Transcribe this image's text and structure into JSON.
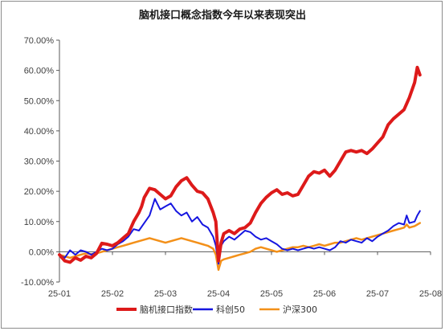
{
  "chart_data": {
    "type": "line",
    "title": "脑机接口概念指数今年以来表现突出",
    "xlabel": "",
    "ylabel": "",
    "ylim": [
      -10,
      70
    ],
    "yticks": [
      "-10.00%",
      "0.00%",
      "10.00%",
      "20.00%",
      "30.00%",
      "40.00%",
      "50.00%",
      "60.00%",
      "70.00%"
    ],
    "xticks": [
      "25-01",
      "25-02",
      "25-03",
      "25-04",
      "25-05",
      "25-06",
      "25-07",
      "25-08"
    ],
    "grid": false,
    "legend_position": "bottom",
    "series": [
      {
        "name": "脑机接口指数",
        "color": "#dd1a1a",
        "points": [
          [
            0.0,
            -1.0
          ],
          [
            0.1,
            -3.0
          ],
          [
            0.2,
            -3.5
          ],
          [
            0.3,
            -2.0
          ],
          [
            0.4,
            -2.8
          ],
          [
            0.5,
            -1.5
          ],
          [
            0.6,
            -2.0
          ],
          [
            0.7,
            -0.5
          ],
          [
            0.8,
            2.8
          ],
          [
            0.9,
            2.5
          ],
          [
            1.0,
            2.0
          ],
          [
            1.1,
            3.0
          ],
          [
            1.2,
            4.5
          ],
          [
            1.3,
            6.0
          ],
          [
            1.4,
            10.0
          ],
          [
            1.5,
            13.0
          ],
          [
            1.55,
            15.0
          ],
          [
            1.6,
            18.0
          ],
          [
            1.7,
            21.0
          ],
          [
            1.8,
            20.5
          ],
          [
            1.9,
            19.0
          ],
          [
            2.0,
            17.5
          ],
          [
            2.1,
            18.5
          ],
          [
            2.2,
            21.5
          ],
          [
            2.3,
            23.5
          ],
          [
            2.4,
            24.5
          ],
          [
            2.5,
            22.0
          ],
          [
            2.6,
            20.0
          ],
          [
            2.7,
            19.5
          ],
          [
            2.8,
            17.5
          ],
          [
            2.9,
            13.0
          ],
          [
            2.95,
            10.0
          ],
          [
            3.0,
            -3.0
          ],
          [
            3.05,
            3.0
          ],
          [
            3.1,
            6.0
          ],
          [
            3.2,
            7.0
          ],
          [
            3.3,
            6.0
          ],
          [
            3.4,
            7.5
          ],
          [
            3.5,
            8.0
          ],
          [
            3.6,
            9.5
          ],
          [
            3.7,
            13.0
          ],
          [
            3.8,
            16.0
          ],
          [
            3.9,
            18.0
          ],
          [
            4.0,
            19.5
          ],
          [
            4.1,
            20.5
          ],
          [
            4.2,
            19.0
          ],
          [
            4.3,
            19.5
          ],
          [
            4.4,
            18.5
          ],
          [
            4.5,
            19.0
          ],
          [
            4.6,
            22.0
          ],
          [
            4.7,
            25.0
          ],
          [
            4.8,
            26.5
          ],
          [
            4.9,
            26.0
          ],
          [
            5.0,
            27.0
          ],
          [
            5.1,
            25.0
          ],
          [
            5.2,
            27.0
          ],
          [
            5.3,
            30.0
          ],
          [
            5.4,
            33.0
          ],
          [
            5.5,
            33.5
          ],
          [
            5.6,
            33.0
          ],
          [
            5.7,
            33.5
          ],
          [
            5.8,
            32.5
          ],
          [
            5.9,
            34.0
          ],
          [
            6.0,
            36.0
          ],
          [
            6.1,
            38.0
          ],
          [
            6.2,
            42.0
          ],
          [
            6.3,
            44.0
          ],
          [
            6.4,
            45.5
          ],
          [
            6.5,
            47.0
          ],
          [
            6.6,
            51.0
          ],
          [
            6.7,
            56.0
          ],
          [
            6.75,
            61.0
          ],
          [
            6.8,
            58.5
          ]
        ]
      },
      {
        "name": "科创50",
        "color": "#1616e0",
        "points": [
          [
            0.0,
            -1.0
          ],
          [
            0.1,
            -2.0
          ],
          [
            0.2,
            0.5
          ],
          [
            0.3,
            -1.0
          ],
          [
            0.4,
            0.5
          ],
          [
            0.5,
            0.0
          ],
          [
            0.6,
            -1.0
          ],
          [
            0.7,
            0.0
          ],
          [
            0.8,
            1.0
          ],
          [
            0.9,
            0.5
          ],
          [
            1.0,
            1.0
          ],
          [
            1.1,
            2.5
          ],
          [
            1.2,
            3.5
          ],
          [
            1.3,
            5.0
          ],
          [
            1.4,
            7.5
          ],
          [
            1.5,
            7.0
          ],
          [
            1.6,
            9.5
          ],
          [
            1.7,
            12.0
          ],
          [
            1.8,
            17.5
          ],
          [
            1.9,
            14.0
          ],
          [
            2.0,
            15.0
          ],
          [
            2.1,
            16.0
          ],
          [
            2.2,
            13.5
          ],
          [
            2.3,
            12.0
          ],
          [
            2.4,
            13.0
          ],
          [
            2.5,
            10.0
          ],
          [
            2.6,
            11.5
          ],
          [
            2.7,
            9.0
          ],
          [
            2.8,
            8.0
          ],
          [
            2.9,
            5.0
          ],
          [
            2.95,
            2.0
          ],
          [
            3.0,
            -4.0
          ],
          [
            3.05,
            2.0
          ],
          [
            3.1,
            3.5
          ],
          [
            3.2,
            5.0
          ],
          [
            3.3,
            4.0
          ],
          [
            3.4,
            5.5
          ],
          [
            3.5,
            7.0
          ],
          [
            3.6,
            6.5
          ],
          [
            3.7,
            5.0
          ],
          [
            3.8,
            4.0
          ],
          [
            3.9,
            4.5
          ],
          [
            4.0,
            3.5
          ],
          [
            4.1,
            2.5
          ],
          [
            4.2,
            1.0
          ],
          [
            4.3,
            0.5
          ],
          [
            4.4,
            1.0
          ],
          [
            4.5,
            0.5
          ],
          [
            4.6,
            1.0
          ],
          [
            4.7,
            1.5
          ],
          [
            4.8,
            1.0
          ],
          [
            4.9,
            1.5
          ],
          [
            5.0,
            1.0
          ],
          [
            5.1,
            0.5
          ],
          [
            5.2,
            1.5
          ],
          [
            5.3,
            3.5
          ],
          [
            5.4,
            3.0
          ],
          [
            5.5,
            4.0
          ],
          [
            5.6,
            3.5
          ],
          [
            5.7,
            3.0
          ],
          [
            5.8,
            4.5
          ],
          [
            5.9,
            3.5
          ],
          [
            6.0,
            5.0
          ],
          [
            6.1,
            6.0
          ],
          [
            6.2,
            7.0
          ],
          [
            6.3,
            8.5
          ],
          [
            6.4,
            9.5
          ],
          [
            6.5,
            9.0
          ],
          [
            6.55,
            12.0
          ],
          [
            6.6,
            9.5
          ],
          [
            6.7,
            10.0
          ],
          [
            6.75,
            12.0
          ],
          [
            6.8,
            13.5
          ]
        ]
      },
      {
        "name": "沪深300",
        "color": "#f39019",
        "points": [
          [
            0.0,
            -1.0
          ],
          [
            0.1,
            -1.5
          ],
          [
            0.2,
            -2.0
          ],
          [
            0.3,
            -1.5
          ],
          [
            0.4,
            -1.0
          ],
          [
            0.5,
            -0.5
          ],
          [
            0.6,
            -0.8
          ],
          [
            0.7,
            -0.5
          ],
          [
            0.8,
            0.0
          ],
          [
            0.9,
            0.5
          ],
          [
            1.0,
            1.0
          ],
          [
            1.1,
            1.5
          ],
          [
            1.2,
            2.0
          ],
          [
            1.3,
            2.5
          ],
          [
            1.4,
            3.0
          ],
          [
            1.5,
            3.5
          ],
          [
            1.6,
            4.0
          ],
          [
            1.7,
            4.5
          ],
          [
            1.8,
            4.0
          ],
          [
            1.9,
            3.5
          ],
          [
            2.0,
            3.0
          ],
          [
            2.1,
            3.5
          ],
          [
            2.2,
            4.0
          ],
          [
            2.3,
            4.5
          ],
          [
            2.4,
            4.0
          ],
          [
            2.5,
            3.5
          ],
          [
            2.6,
            3.0
          ],
          [
            2.7,
            2.5
          ],
          [
            2.8,
            2.0
          ],
          [
            2.9,
            1.0
          ],
          [
            2.95,
            -1.0
          ],
          [
            3.0,
            -6.0
          ],
          [
            3.05,
            -3.0
          ],
          [
            3.1,
            -2.5
          ],
          [
            3.2,
            -2.0
          ],
          [
            3.3,
            -1.5
          ],
          [
            3.4,
            -1.0
          ],
          [
            3.5,
            -0.5
          ],
          [
            3.6,
            0.0
          ],
          [
            3.7,
            1.0
          ],
          [
            3.8,
            1.5
          ],
          [
            3.9,
            1.0
          ],
          [
            4.0,
            0.5
          ],
          [
            4.1,
            0.0
          ],
          [
            4.2,
            0.5
          ],
          [
            4.3,
            1.0
          ],
          [
            4.4,
            1.5
          ],
          [
            4.5,
            1.5
          ],
          [
            4.6,
            2.0
          ],
          [
            4.7,
            1.5
          ],
          [
            4.8,
            2.0
          ],
          [
            4.9,
            2.5
          ],
          [
            5.0,
            2.0
          ],
          [
            5.1,
            2.5
          ],
          [
            5.2,
            3.0
          ],
          [
            5.3,
            3.0
          ],
          [
            5.4,
            3.5
          ],
          [
            5.5,
            4.0
          ],
          [
            5.6,
            4.5
          ],
          [
            5.7,
            4.0
          ],
          [
            5.8,
            4.5
          ],
          [
            5.9,
            5.0
          ],
          [
            6.0,
            5.5
          ],
          [
            6.1,
            6.0
          ],
          [
            6.2,
            6.5
          ],
          [
            6.3,
            7.0
          ],
          [
            6.4,
            7.5
          ],
          [
            6.5,
            8.0
          ],
          [
            6.55,
            9.0
          ],
          [
            6.6,
            8.0
          ],
          [
            6.7,
            8.5
          ],
          [
            6.75,
            9.0
          ],
          [
            6.8,
            9.5
          ]
        ]
      }
    ]
  }
}
